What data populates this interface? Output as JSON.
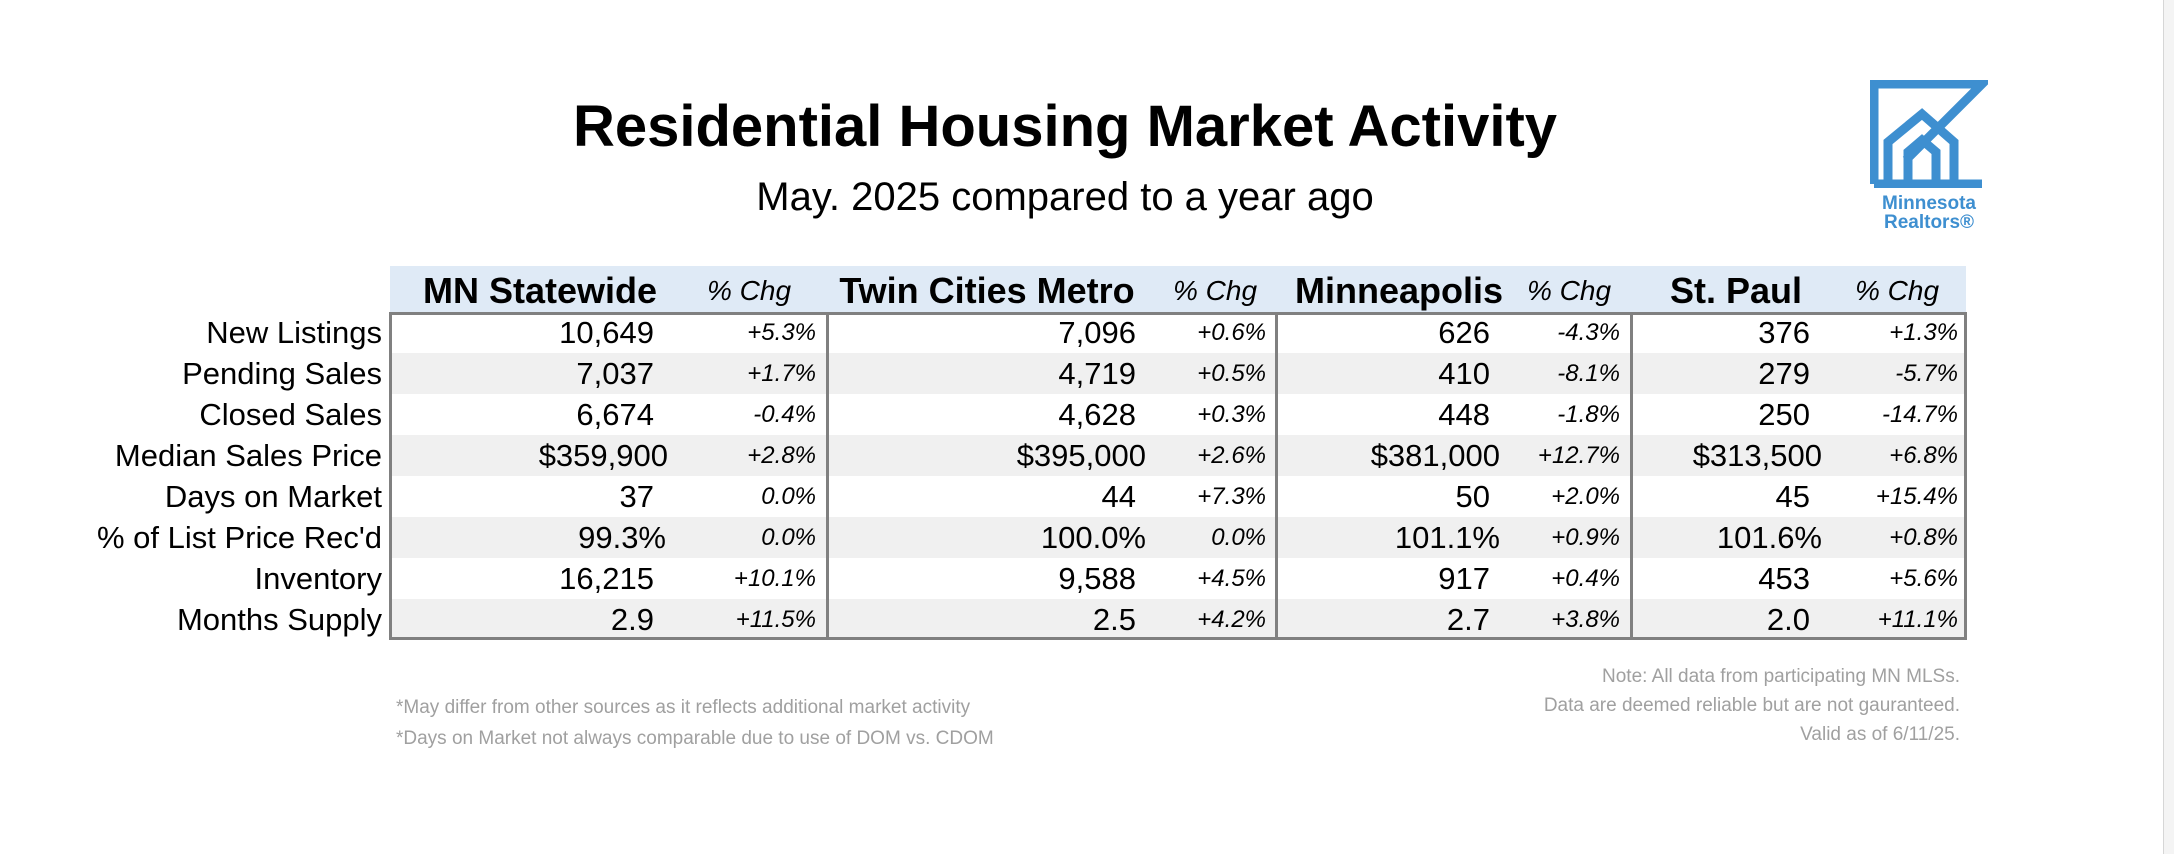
{
  "title": "Residential Housing Market Activity",
  "subtitle": "May. 2025 compared to a year ago",
  "logo": {
    "line1": "Minnesota",
    "line2": "Realtors®",
    "color": "#3e8fd0"
  },
  "columns": [
    {
      "area": "MN Statewide",
      "chg": "% Chg"
    },
    {
      "area": "Twin Cities Metro",
      "chg": "% Chg"
    },
    {
      "area": "Minneapolis",
      "chg": "% Chg"
    },
    {
      "area": "St. Paul",
      "chg": "% Chg"
    }
  ],
  "rows": [
    {
      "label": "New Listings",
      "cells": [
        [
          "10,649",
          "+5.3%"
        ],
        [
          "7,096",
          "+0.6%"
        ],
        [
          "626",
          "-4.3%"
        ],
        [
          "376",
          "+1.3%"
        ]
      ]
    },
    {
      "label": "Pending Sales",
      "cells": [
        [
          "7,037",
          "+1.7%"
        ],
        [
          "4,719",
          "+0.5%"
        ],
        [
          "410",
          "-8.1%"
        ],
        [
          "279",
          "-5.7%"
        ]
      ]
    },
    {
      "label": "Closed Sales",
      "cells": [
        [
          "6,674",
          "-0.4%"
        ],
        [
          "4,628",
          "+0.3%"
        ],
        [
          "448",
          "-1.8%"
        ],
        [
          "250",
          "-14.7%"
        ]
      ]
    },
    {
      "label": "Median Sales Price",
      "cells": [
        [
          "$359,900",
          "+2.8%"
        ],
        [
          "$395,000",
          "+2.6%"
        ],
        [
          "$381,000",
          "+12.7%"
        ],
        [
          "$313,500",
          "+6.8%"
        ]
      ]
    },
    {
      "label": "Days on Market",
      "cells": [
        [
          "37",
          "0.0%"
        ],
        [
          "44",
          "+7.3%"
        ],
        [
          "50",
          "+2.0%"
        ],
        [
          "45",
          "+15.4%"
        ]
      ]
    },
    {
      "label": "% of List Price Rec'd",
      "cells": [
        [
          "99.3%",
          "0.0%"
        ],
        [
          "100.0%",
          "0.0%"
        ],
        [
          "101.1%",
          "+0.9%"
        ],
        [
          "101.6%",
          "+0.8%"
        ]
      ]
    },
    {
      "label": "Inventory",
      "cells": [
        [
          "16,215",
          "+10.1%"
        ],
        [
          "9,588",
          "+4.5%"
        ],
        [
          "917",
          "+0.4%"
        ],
        [
          "453",
          "+5.6%"
        ]
      ]
    },
    {
      "label": "Months Supply",
      "cells": [
        [
          "2.9",
          "+11.5%"
        ],
        [
          "2.5",
          "+4.2%"
        ],
        [
          "2.7",
          "+3.8%"
        ],
        [
          "2.0",
          "+11.1%"
        ]
      ]
    }
  ],
  "footnotes_left": [
    "*May differ from other sources as it reflects additional market activity",
    "*Days on Market not always comparable due to use of DOM vs. CDOM"
  ],
  "footnotes_right": [
    "Note:  All data from participating MN MLSs.",
    "Data are deemed reliable but are not gauranteed.",
    "Valid as of 6/11/25."
  ]
}
